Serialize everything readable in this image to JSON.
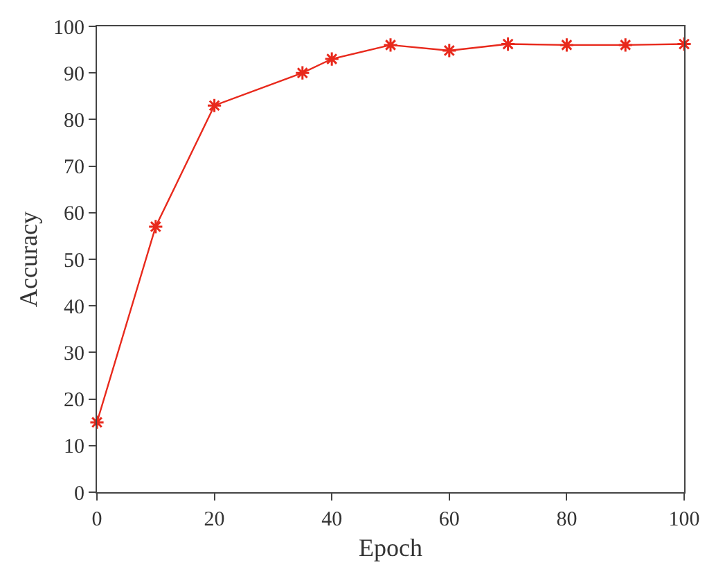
{
  "chart_data": {
    "type": "line",
    "xlabel": "Epoch",
    "ylabel": "Accuracy",
    "x": [
      0,
      10,
      20,
      35,
      40,
      50,
      60,
      70,
      80,
      90,
      100
    ],
    "series": [
      {
        "color": "#e8291c",
        "values": [
          15,
          57,
          83,
          90,
          93,
          96,
          94.8,
          96.2,
          96,
          96,
          96.2
        ]
      }
    ],
    "xlim": [
      0,
      100
    ],
    "xticks": [
      0,
      20,
      40,
      60,
      80,
      100
    ],
    "ylim": [
      0,
      100
    ],
    "yticks": [
      0,
      10,
      20,
      30,
      40,
      50,
      60,
      70,
      80,
      90,
      100
    ],
    "grid": false,
    "marker": "cross",
    "line_style": "solid"
  }
}
